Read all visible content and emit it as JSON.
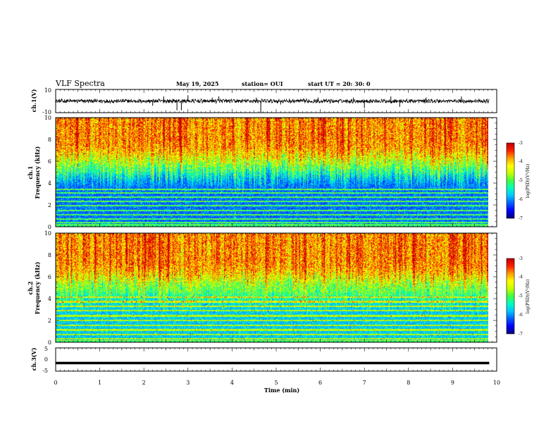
{
  "header": {
    "title": "VLF Spectra",
    "date": "May 19, 2025",
    "station": "station= OUI",
    "start": "start  UT  =   20: 30: 0"
  },
  "colors": {
    "colormap": [
      "#000080",
      "#0000ff",
      "#0060ff",
      "#00c8ff",
      "#00ffc0",
      "#40ff40",
      "#c8ff00",
      "#ffff00",
      "#ffa000",
      "#ff2000",
      "#c00000"
    ],
    "trace": "#000000",
    "axis": "#000000"
  },
  "chart_data": [
    {
      "type": "line",
      "panel": "ch1-waveform",
      "ylabel": "ch.1(V)",
      "ylim": [
        -10,
        10
      ],
      "yticks": [
        "10",
        "-10"
      ],
      "xlim": [
        0,
        10
      ],
      "baseline_value": 0,
      "spikes": [
        {
          "t": 2.2,
          "v": -4
        },
        {
          "t": 2.45,
          "v": 4
        },
        {
          "t": 2.75,
          "v": -8
        },
        {
          "t": 2.85,
          "v": -8
        },
        {
          "t": 3.0,
          "v": 5
        },
        {
          "t": 3.55,
          "v": 3
        },
        {
          "t": 3.7,
          "v": 4
        },
        {
          "t": 4.55,
          "v": 3
        },
        {
          "t": 4.65,
          "v": -10
        },
        {
          "t": 5.1,
          "v": -3
        },
        {
          "t": 5.95,
          "v": 3
        },
        {
          "t": 6.75,
          "v": 3
        },
        {
          "t": 7.0,
          "v": -6
        },
        {
          "t": 7.6,
          "v": 4
        },
        {
          "t": 7.8,
          "v": -5
        },
        {
          "t": 8.4,
          "v": 3
        },
        {
          "t": 9.2,
          "v": 4
        }
      ]
    },
    {
      "type": "heatmap",
      "panel": "ch1-spectrogram",
      "ylabel_line1": "ch.1",
      "ylabel_line2": "Frequency (kHz)",
      "ylim": [
        0,
        10
      ],
      "yticks": [
        "0",
        "2",
        "4",
        "6",
        "8",
        "10"
      ],
      "xlim": [
        0,
        9.83
      ],
      "zlim": [
        -7,
        -3
      ],
      "quiet_band_top_khz": 5.0,
      "colorbar": {
        "label": "log(PSD)(V²/Hz)",
        "ticks": [
          "-3",
          "-4",
          "-5",
          "-6",
          "-7"
        ]
      }
    },
    {
      "type": "heatmap",
      "panel": "ch2-spectrogram",
      "ylabel_line1": "ch.2",
      "ylabel_line2": "Frequency (kHz)",
      "ylim": [
        0,
        10
      ],
      "yticks": [
        "0",
        "2",
        "4",
        "6",
        "8",
        "10"
      ],
      "xlim": [
        0,
        9.83
      ],
      "zlim": [
        -7,
        -3
      ],
      "quiet_band_top_khz": 4.5,
      "colorbar": {
        "label": "log(PSD)(V²/Hz)",
        "ticks": [
          "-3",
          "-4",
          "-5",
          "-6",
          "-7"
        ]
      }
    },
    {
      "type": "line",
      "panel": "ch3-waveform",
      "ylabel": "ch.3(V)",
      "ylim": [
        -5,
        5
      ],
      "yticks": [
        "5",
        "0",
        "-5"
      ],
      "xlim": [
        0,
        10
      ],
      "baseline_value": -1.5,
      "xlabel": "Time (min)",
      "xticks": [
        "0",
        "1",
        "2",
        "3",
        "4",
        "5",
        "6",
        "7",
        "8",
        "9",
        "10"
      ]
    }
  ]
}
